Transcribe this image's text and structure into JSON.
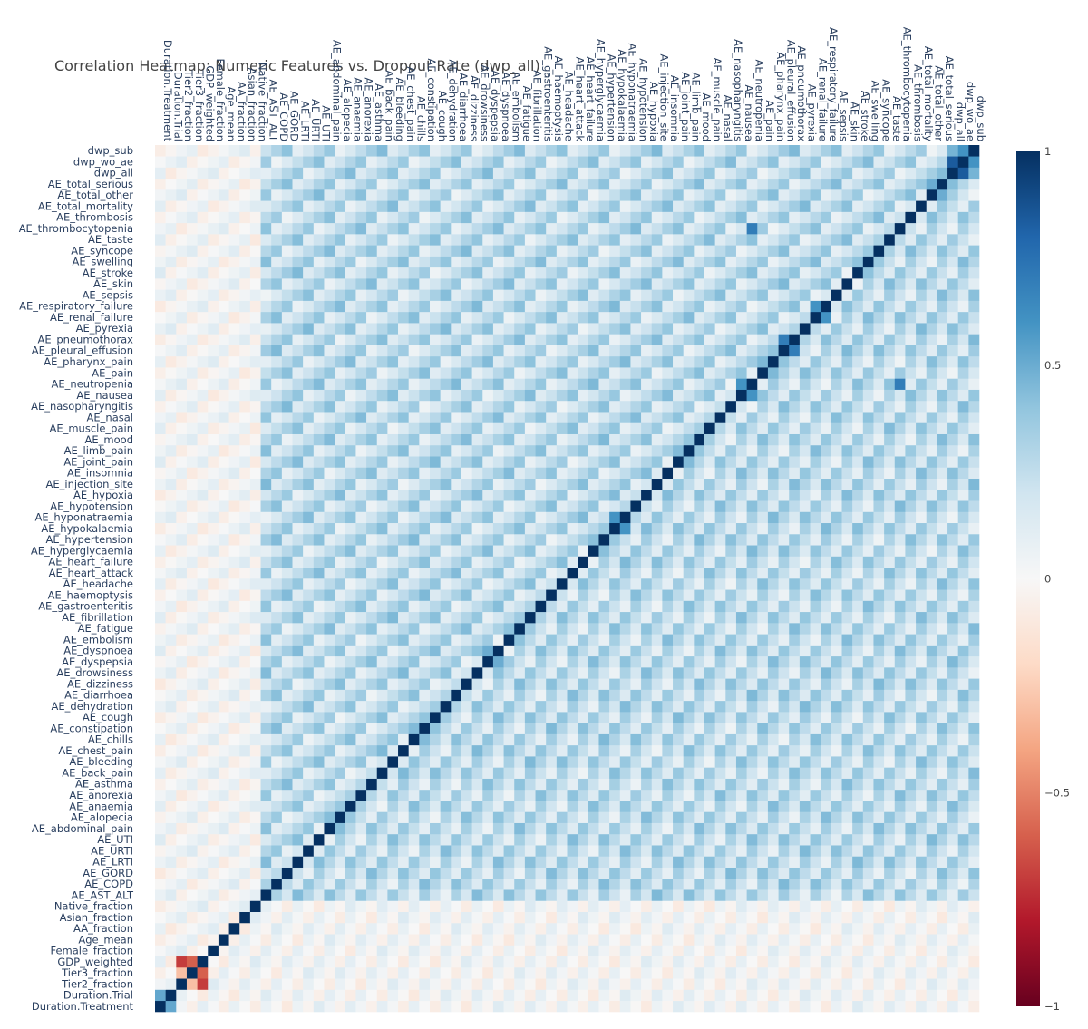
{
  "chart_data": {
    "type": "heatmap",
    "title": "Correlation Heatmap: Numeric Features vs. Dropout Rate (dwp_all)",
    "colorscale": "RdBu",
    "zmin": -1,
    "zmax": 1,
    "colorbar_ticks": [
      {
        "value": 1,
        "label": "1"
      },
      {
        "value": 0.5,
        "label": "0.5"
      },
      {
        "value": 0,
        "label": "0"
      },
      {
        "value": -0.5,
        "label": "−0.5"
      },
      {
        "value": -1,
        "label": "−1"
      }
    ],
    "x_labels": [
      "Duration.Treatment",
      "Duration.Trial",
      "Tier2_fraction",
      "Tier3_fraction",
      "GDP_weighted",
      "Female_fraction",
      "Age_mean",
      "AA_fraction",
      "Asian_fraction",
      "Native_fraction",
      "AE_AST_ALT",
      "AE_COPD",
      "AE_GORD",
      "AE_LRTI",
      "AE_URTI",
      "AE_UTI",
      "AE_abdominal_pain",
      "AE_alopecia",
      "AE_anaemia",
      "AE_anorexia",
      "AE_asthma",
      "AE_back_pain",
      "AE_bleeding",
      "AE_chest_pain",
      "AE_chills",
      "AE_constipation",
      "AE_cough",
      "AE_dehydration",
      "AE_diarrhoea",
      "AE_dizziness",
      "AE_drowsiness",
      "AE_dyspepsia",
      "AE_dyspnoea",
      "AE_embolism",
      "AE_fatigue",
      "AE_fibrillation",
      "AE_gastroenteritis",
      "AE_haemoptysis",
      "AE_headache",
      "AE_heart_attack",
      "AE_heart_failure",
      "AE_hyperglycaemia",
      "AE_hypertension",
      "AE_hypokalaemia",
      "AE_hyponatraemia",
      "AE_hypotension",
      "AE_hypoxia",
      "AE_injection_site",
      "AE_insomnia",
      "AE_joint_pain",
      "AE_limb_pain",
      "AE_mood",
      "AE_muscle_pain",
      "AE_nasal",
      "AE_nasopharyngitis",
      "AE_nausea",
      "AE_neutropenia",
      "AE_pain",
      "AE_pharynx_pain",
      "AE_pleural_effusion",
      "AE_pneumothorax",
      "AE_pyrexia",
      "AE_renal_failure",
      "AE_respiratory_failure",
      "AE_sepsis",
      "AE_skin",
      "AE_stroke",
      "AE_swelling",
      "AE_syncope",
      "AE_taste",
      "AE_thrombocytopenia",
      "AE_thrombosis",
      "AE_total_mortality",
      "AE_total_other",
      "AE_total_serious",
      "dwp_all",
      "dwp_wo_ae",
      "dwp_sub"
    ],
    "y_labels": [
      "Duration.Treatment",
      "Duration.Trial",
      "Tier2_fraction",
      "Tier3_fraction",
      "GDP_weighted",
      "Female_fraction",
      "Age_mean",
      "AA_fraction",
      "Asian_fraction",
      "Native_fraction",
      "AE_AST_ALT",
      "AE_COPD",
      "AE_GORD",
      "AE_LRTI",
      "AE_URTI",
      "AE_UTI",
      "AE_abdominal_pain",
      "AE_alopecia",
      "AE_anaemia",
      "AE_anorexia",
      "AE_asthma",
      "AE_back_pain",
      "AE_bleeding",
      "AE_chest_pain",
      "AE_chills",
      "AE_constipation",
      "AE_cough",
      "AE_dehydration",
      "AE_diarrhoea",
      "AE_dizziness",
      "AE_drowsiness",
      "AE_dyspepsia",
      "AE_dyspnoea",
      "AE_embolism",
      "AE_fatigue",
      "AE_fibrillation",
      "AE_gastroenteritis",
      "AE_haemoptysis",
      "AE_headache",
      "AE_heart_attack",
      "AE_heart_failure",
      "AE_hyperglycaemia",
      "AE_hypertension",
      "AE_hypokalaemia",
      "AE_hyponatraemia",
      "AE_hypotension",
      "AE_hypoxia",
      "AE_injection_site",
      "AE_insomnia",
      "AE_joint_pain",
      "AE_limb_pain",
      "AE_mood",
      "AE_muscle_pain",
      "AE_nasal",
      "AE_nasopharyngitis",
      "AE_nausea",
      "AE_neutropenia",
      "AE_pain",
      "AE_pharynx_pain",
      "AE_pleural_effusion",
      "AE_pneumothorax",
      "AE_pyrexia",
      "AE_renal_failure",
      "AE_respiratory_failure",
      "AE_sepsis",
      "AE_skin",
      "AE_stroke",
      "AE_swelling",
      "AE_syncope",
      "AE_taste",
      "AE_thrombocytopenia",
      "AE_thrombosis",
      "AE_total_mortality",
      "AE_total_other",
      "AE_total_serious",
      "dwp_all",
      "dwp_wo_ae",
      "dwp_sub"
    ],
    "diagonal_value": 1,
    "strong_correlations": [
      {
        "a": "Duration.Treatment",
        "b": "Duration.Trial",
        "r": 0.52
      },
      {
        "a": "Tier2_fraction",
        "b": "Tier3_fraction",
        "r": -0.3
      },
      {
        "a": "Tier2_fraction",
        "b": "GDP_weighted",
        "r": -0.7
      },
      {
        "a": "Tier3_fraction",
        "b": "GDP_weighted",
        "r": -0.6
      },
      {
        "a": "AE_nausea",
        "b": "AE_neutropenia",
        "r": 0.6
      },
      {
        "a": "AE_pleural_effusion",
        "b": "AE_pneumothorax",
        "r": 0.7
      },
      {
        "a": "AE_renal_failure",
        "b": "AE_respiratory_failure",
        "r": 0.6
      },
      {
        "a": "AE_thrombocytopenia",
        "b": "AE_neutropenia",
        "r": 0.7
      },
      {
        "a": "AE_dyspnoea",
        "b": "AE_dyspepsia",
        "r": 0.5
      },
      {
        "a": "AE_hyponatraemia",
        "b": "AE_hypokalaemia",
        "r": 0.6
      },
      {
        "a": "AE_total_serious",
        "b": "AE_total_other",
        "r": 0.5
      },
      {
        "a": "dwp_all",
        "b": "dwp_wo_ae",
        "r": 0.84
      },
      {
        "a": "dwp_all",
        "b": "dwp_sub",
        "r": 0.47
      },
      {
        "a": "dwp_wo_ae",
        "b": "dwp_sub",
        "r": 0.6
      }
    ],
    "general_pattern": "AE_* features mostly weakly positively correlated (0.1–0.4); demographic features near zero"
  }
}
